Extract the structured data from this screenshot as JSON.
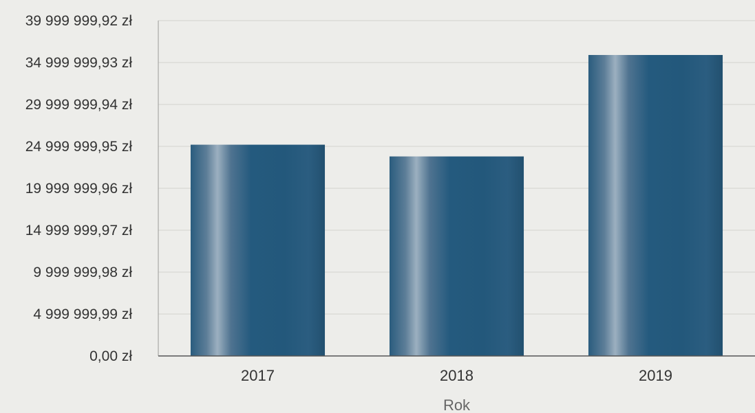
{
  "chart_data": {
    "type": "bar",
    "title": "",
    "xlabel": "Rok",
    "ylabel": "",
    "categories": [
      "2017",
      "2018",
      "2019"
    ],
    "values": [
      25200000,
      23800000,
      35900000
    ],
    "ylim": [
      0,
      39999999.92
    ],
    "yticks": [
      0,
      4999999.99,
      9999999.98,
      14999999.97,
      19999999.96,
      24999999.95,
      29999999.94,
      34999999.93,
      39999999.92
    ],
    "ytick_labels": [
      "0,00 zł",
      "4 999 999,99 zł",
      "9 999 999,98 zł",
      "14 999 999,97 zł",
      "19 999 999,96 zł",
      "24 999 999,95 zł",
      "29 999 999,94 zł",
      "34 999 999,93 zł",
      "39 999 999,92 zł"
    ],
    "grid": true,
    "legend": "none",
    "bar_color": "#245a7e",
    "bar_highlight": "#8fa6b8",
    "grid_color": "#d2d2cf"
  }
}
